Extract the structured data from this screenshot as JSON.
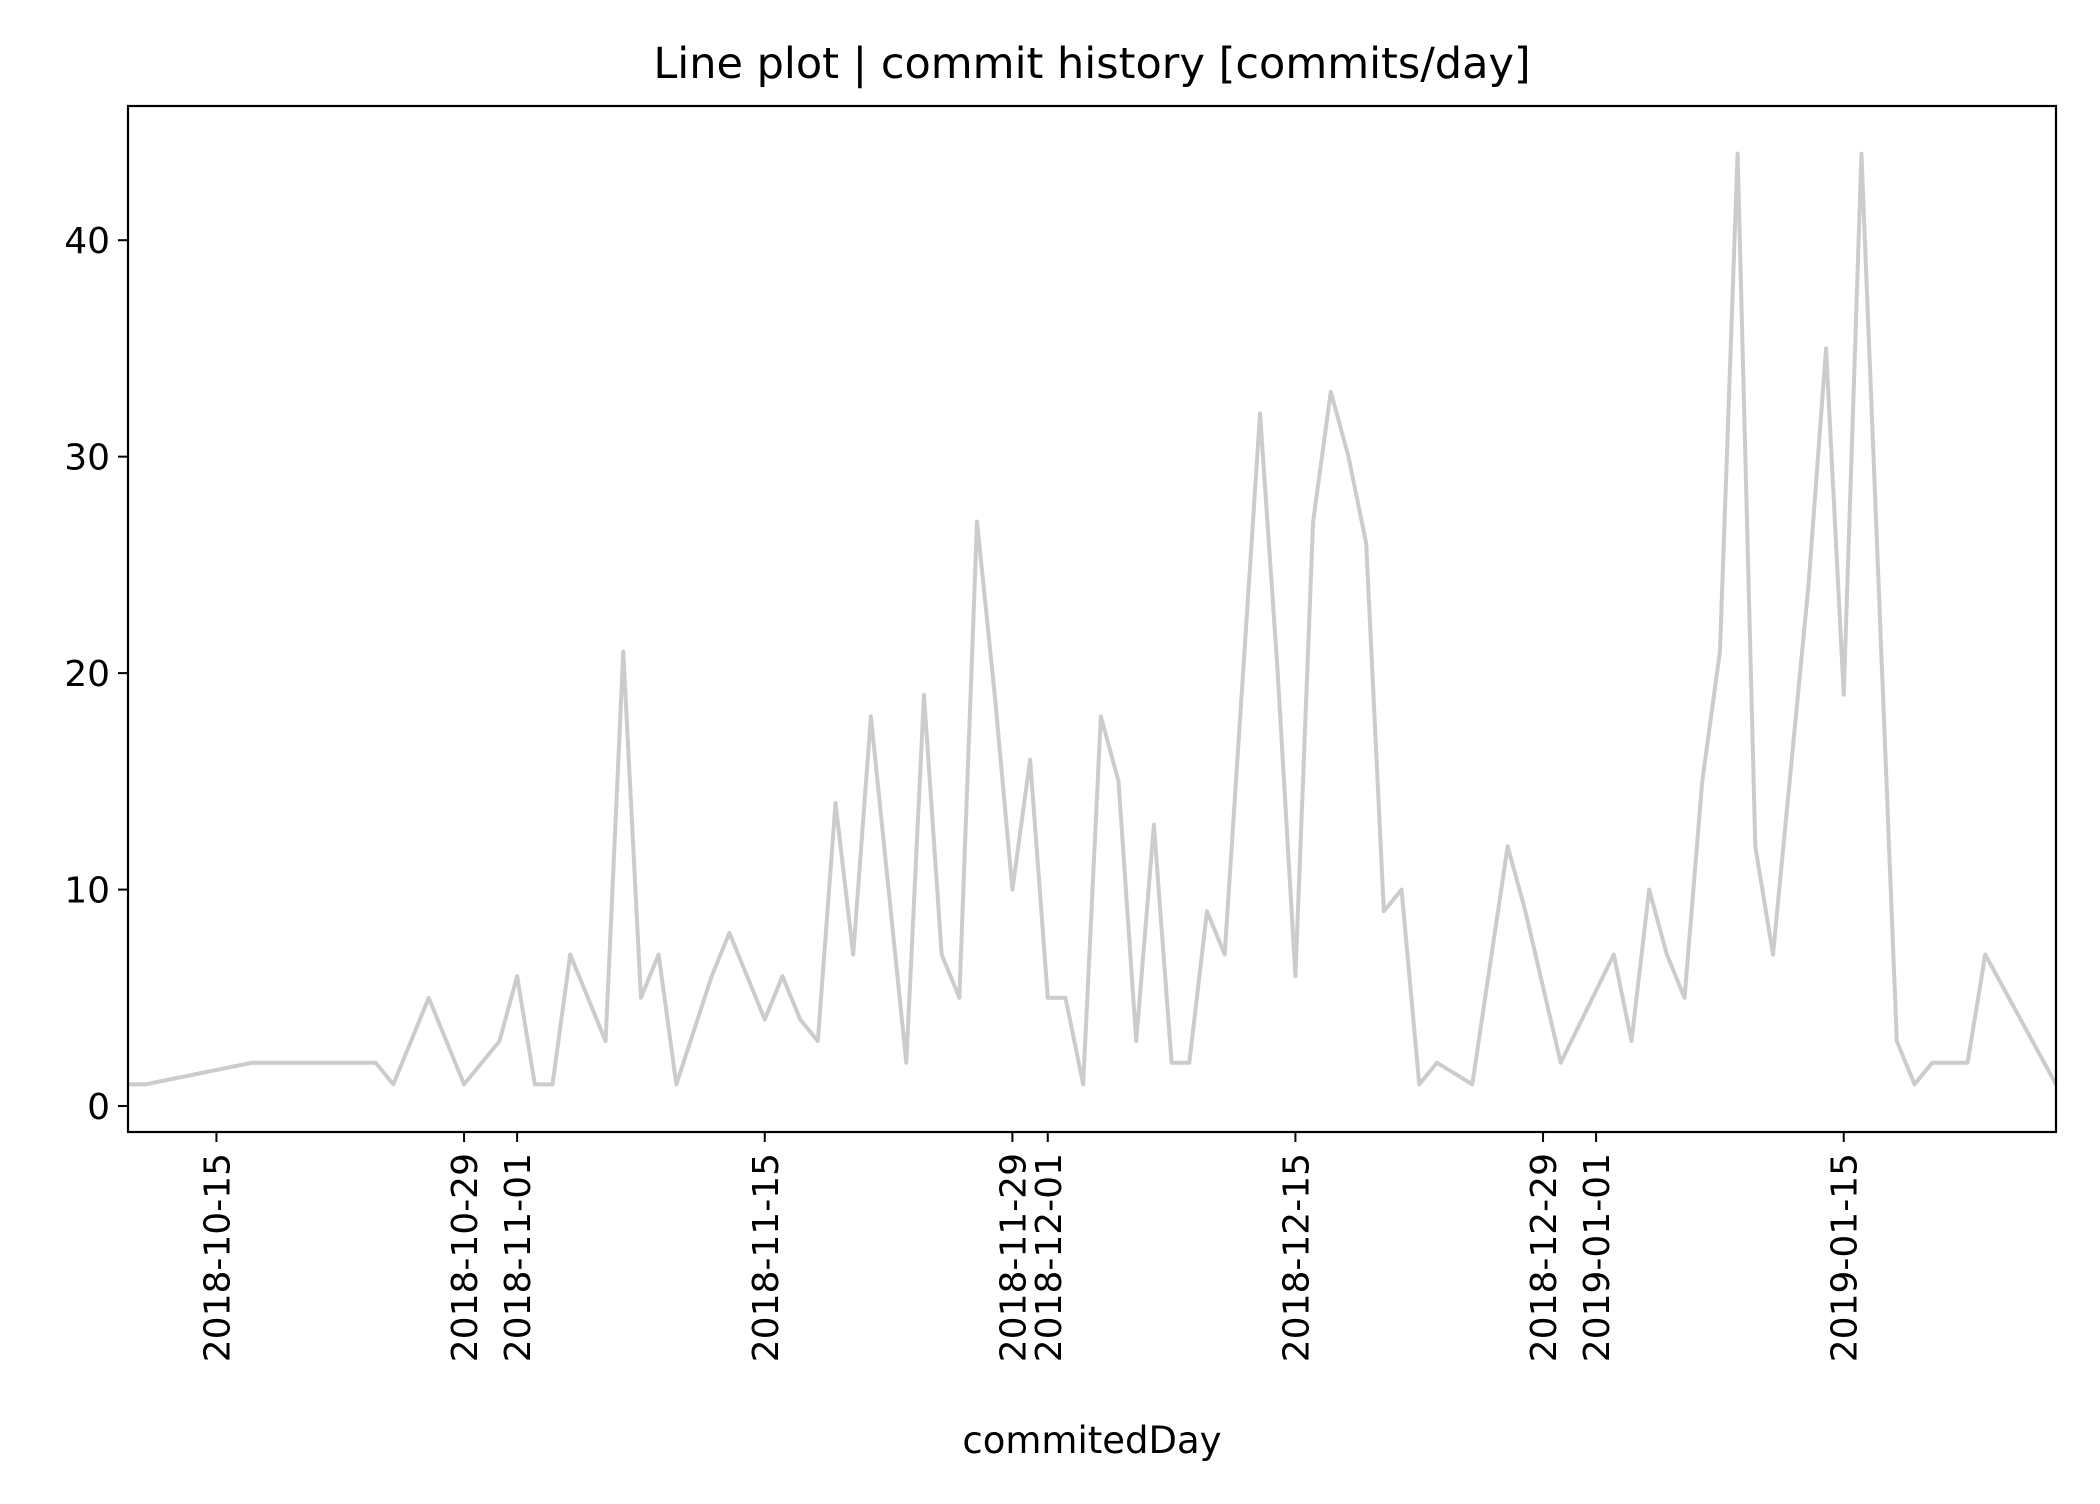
{
  "chart_data": {
    "type": "line",
    "title": "Line plot | commit history [commits/day]",
    "xlabel": "commitedDay",
    "ylabel": "",
    "xlim": [
      "2018-10-10",
      "2019-01-27"
    ],
    "ylim": [
      -1.2,
      46.2
    ],
    "grid": false,
    "legend": "none",
    "line_color": "#cccccc",
    "x_ticks": [
      "2018-10-15",
      "2018-10-29",
      "2018-11-01",
      "2018-11-15",
      "2018-11-29",
      "2018-12-01",
      "2018-12-15",
      "2018-12-29",
      "2019-01-01",
      "2019-01-15"
    ],
    "y_ticks": [
      0,
      10,
      20,
      30,
      40
    ],
    "x": [
      "2018-10-10",
      "2018-10-11",
      "2018-10-17",
      "2018-10-24",
      "2018-10-25",
      "2018-10-27",
      "2018-10-29",
      "2018-10-31",
      "2018-11-01",
      "2018-11-02",
      "2018-11-03",
      "2018-11-04",
      "2018-11-06",
      "2018-11-07",
      "2018-11-08",
      "2018-11-09",
      "2018-11-10",
      "2018-11-12",
      "2018-11-13",
      "2018-11-15",
      "2018-11-16",
      "2018-11-17",
      "2018-11-18",
      "2018-11-19",
      "2018-11-20",
      "2018-11-21",
      "2018-11-23",
      "2018-11-24",
      "2018-11-25",
      "2018-11-26",
      "2018-11-27",
      "2018-11-28",
      "2018-11-29",
      "2018-11-30",
      "2018-12-01",
      "2018-12-02",
      "2018-12-03",
      "2018-12-04",
      "2018-12-05",
      "2018-12-06",
      "2018-12-07",
      "2018-12-08",
      "2018-12-09",
      "2018-12-10",
      "2018-12-11",
      "2018-12-13",
      "2018-12-14",
      "2018-12-15",
      "2018-12-16",
      "2018-12-17",
      "2018-12-18",
      "2018-12-19",
      "2018-12-20",
      "2018-12-21",
      "2018-12-22",
      "2018-12-23",
      "2018-12-25",
      "2018-12-27",
      "2018-12-28",
      "2018-12-30",
      "2019-01-02",
      "2019-01-03",
      "2019-01-04",
      "2019-01-05",
      "2019-01-06",
      "2019-01-07",
      "2019-01-08",
      "2019-01-09",
      "2019-01-10",
      "2019-01-11",
      "2019-01-13",
      "2019-01-14",
      "2019-01-15",
      "2019-01-16",
      "2019-01-18",
      "2019-01-19",
      "2019-01-20",
      "2019-01-22",
      "2019-01-23",
      "2019-01-27"
    ],
    "series": [
      {
        "values": [
          1,
          1,
          2,
          2,
          1,
          5,
          1,
          3,
          6,
          1,
          1,
          7,
          3,
          21,
          5,
          7,
          1,
          6,
          8,
          4,
          6,
          4,
          3,
          14,
          7,
          18,
          2,
          19,
          7,
          5,
          27,
          19,
          10,
          16,
          5,
          5,
          1,
          18,
          15,
          3,
          13,
          2,
          2,
          9,
          7,
          32,
          20,
          6,
          27,
          33,
          30,
          26,
          9,
          10,
          1,
          2,
          1,
          12,
          9,
          2,
          7,
          3,
          10,
          7,
          5,
          15,
          21,
          44,
          12,
          7,
          24,
          35,
          19,
          44,
          3,
          1,
          2,
          2,
          7,
          1
        ]
      }
    ]
  }
}
